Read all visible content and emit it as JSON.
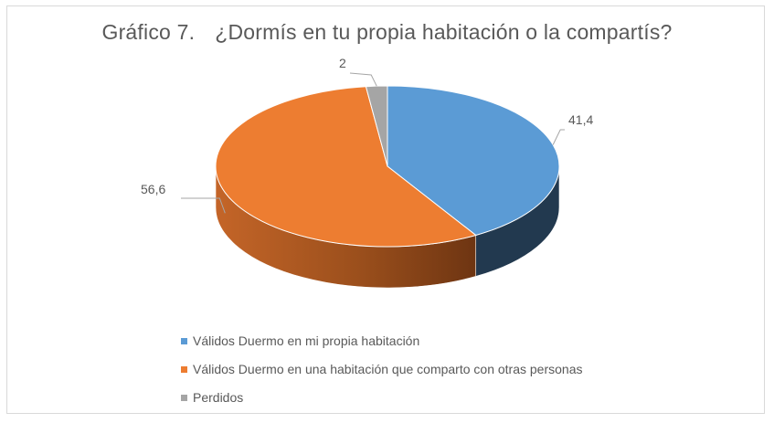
{
  "chart_data": {
    "type": "pie",
    "title_prefix": "Gráfico 7.",
    "title": "¿Dormís en tu propia habitación o la compartís?",
    "slices": [
      {
        "label": "Válidos Duermo en mi propia habitación",
        "value": 41.4,
        "display": "41,4",
        "color": "#5b9bd5",
        "side_color": "#22394f"
      },
      {
        "label": "Válidos Duermo en una habitación que comparto con otras personas",
        "value": 56.6,
        "display": "56,6",
        "color": "#ed7d31",
        "side_color": "#9c4d1a"
      },
      {
        "label": "Perdidos",
        "value": 2,
        "display": "2",
        "color": "#a5a5a5",
        "side_color": "#6b6b6b"
      }
    ],
    "legend_position": "bottom-left",
    "style": "3d-pie"
  }
}
